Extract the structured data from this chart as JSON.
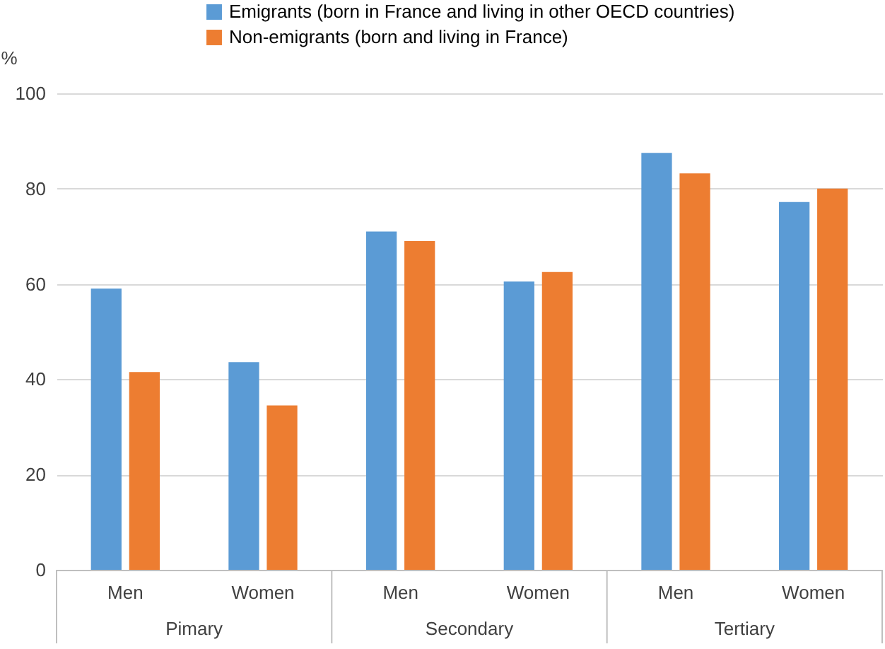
{
  "chart_data": {
    "type": "bar",
    "ylabel": "%",
    "categories": [
      "Men",
      "Women",
      "Men",
      "Women",
      "Men",
      "Women"
    ],
    "annotations": [
      "Pimary",
      "Secondary",
      "Tertiary"
    ],
    "series": [
      {
        "name": "Emigrants (born in France and living in other OECD countries)",
        "color": "#5b9bd5",
        "values": [
          59,
          43.6,
          71,
          60.5,
          87.5,
          77.2
        ]
      },
      {
        "name": "Non-emigrants (born and living in France)",
        "color": "#ed7d31",
        "values": [
          41.5,
          34.5,
          69,
          62.5,
          83.2,
          80
        ]
      }
    ],
    "ylim": [
      0,
      100
    ],
    "yticks": [
      0,
      20,
      40,
      60,
      80,
      100
    ],
    "grid": "y",
    "legend": "top"
  }
}
